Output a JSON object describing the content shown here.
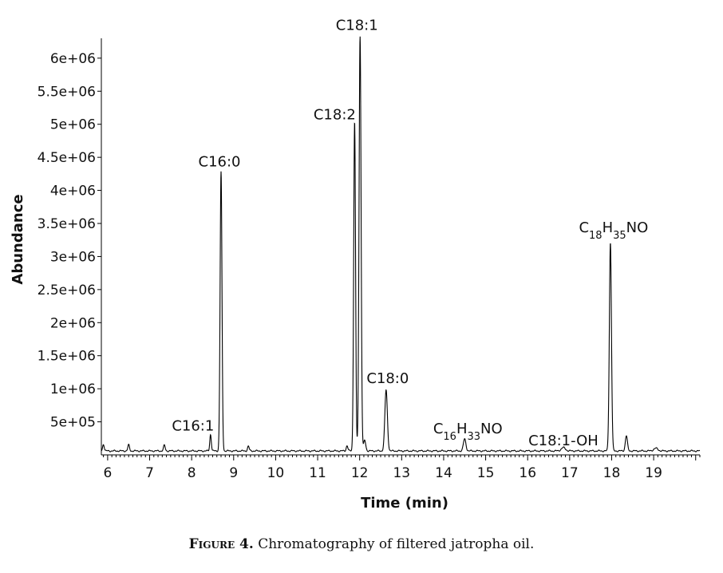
{
  "caption": {
    "label": "Figure 4.",
    "text": "Chromatography of filtered jatropha oil."
  },
  "chart_data": {
    "type": "line",
    "title": "",
    "xlabel": "Time (min)",
    "ylabel": "Abundance",
    "xlim": [
      5.85,
      20.1
    ],
    "ylim": [
      0,
      6300000
    ],
    "grid": false,
    "x_ticks": [
      6,
      7,
      8,
      9,
      10,
      11,
      12,
      13,
      14,
      15,
      16,
      17,
      18,
      19
    ],
    "y_ticks": [
      500000,
      1000000,
      1500000,
      2000000,
      2500000,
      3000000,
      3500000,
      4000000,
      4500000,
      5000000,
      5500000,
      6000000
    ],
    "y_tick_labels": [
      "5e+05",
      "1e+06",
      "1.5e+06",
      "2e+06",
      "2.5e+06",
      "3e+06",
      "3.5e+06",
      "4e+06",
      "4.5e+06",
      "5e+06",
      "5.5e+06",
      "6e+06"
    ],
    "baseline": 60000,
    "line_color": "#000000",
    "peaks": [
      {
        "x": 5.9,
        "y": 100000,
        "w": 0.02
      },
      {
        "x": 6.5,
        "y": 90000,
        "w": 0.02
      },
      {
        "x": 7.35,
        "y": 85000,
        "w": 0.02
      },
      {
        "x": 8.45,
        "y": 250000,
        "w": 0.018
      },
      {
        "x": 8.7,
        "y": 4220000,
        "w": 0.022
      },
      {
        "x": 9.35,
        "y": 70000,
        "w": 0.02
      },
      {
        "x": 11.7,
        "y": 80000,
        "w": 0.02
      },
      {
        "x": 11.88,
        "y": 4980000,
        "w": 0.022
      },
      {
        "x": 12.01,
        "y": 6280000,
        "w": 0.024
      },
      {
        "x": 12.12,
        "y": 160000,
        "w": 0.025
      },
      {
        "x": 12.63,
        "y": 920000,
        "w": 0.03
      },
      {
        "x": 14.5,
        "y": 180000,
        "w": 0.03
      },
      {
        "x": 16.85,
        "y": 50000,
        "w": 0.05
      },
      {
        "x": 17.97,
        "y": 3150000,
        "w": 0.025
      },
      {
        "x": 18.35,
        "y": 230000,
        "w": 0.025
      },
      {
        "x": 19.05,
        "y": 40000,
        "w": 0.05
      }
    ],
    "annotations": [
      {
        "text": "C16:1",
        "x": 8.45,
        "y": 250000,
        "dx": -22,
        "dy": -10
      },
      {
        "text": "C16:0",
        "x": 8.7,
        "y": 4220000,
        "dx": -2,
        "dy": -12
      },
      {
        "text": "C18:2",
        "x": 11.88,
        "y": 4980000,
        "dx": -25,
        "dy": -8
      },
      {
        "text": "C18:1",
        "x": 12.01,
        "y": 6280000,
        "dx": -4,
        "dy": -12
      },
      {
        "text": "C18:0",
        "x": 12.63,
        "y": 920000,
        "dx": 2,
        "dy": -14
      },
      {
        "text": "C18:1-OH",
        "x": 16.85,
        "y": 50000,
        "dx": 0,
        "dy": -8
      }
    ],
    "formula_annotations": [
      {
        "parts": [
          "C",
          "16",
          "H",
          "33",
          "NO"
        ],
        "x": 14.5,
        "y": 180000,
        "dx": 4,
        "dy": -12
      },
      {
        "parts": [
          "C",
          "18",
          "H",
          "35",
          "NO"
        ],
        "x": 17.97,
        "y": 3150000,
        "dx": 4,
        "dy": -18
      }
    ]
  }
}
